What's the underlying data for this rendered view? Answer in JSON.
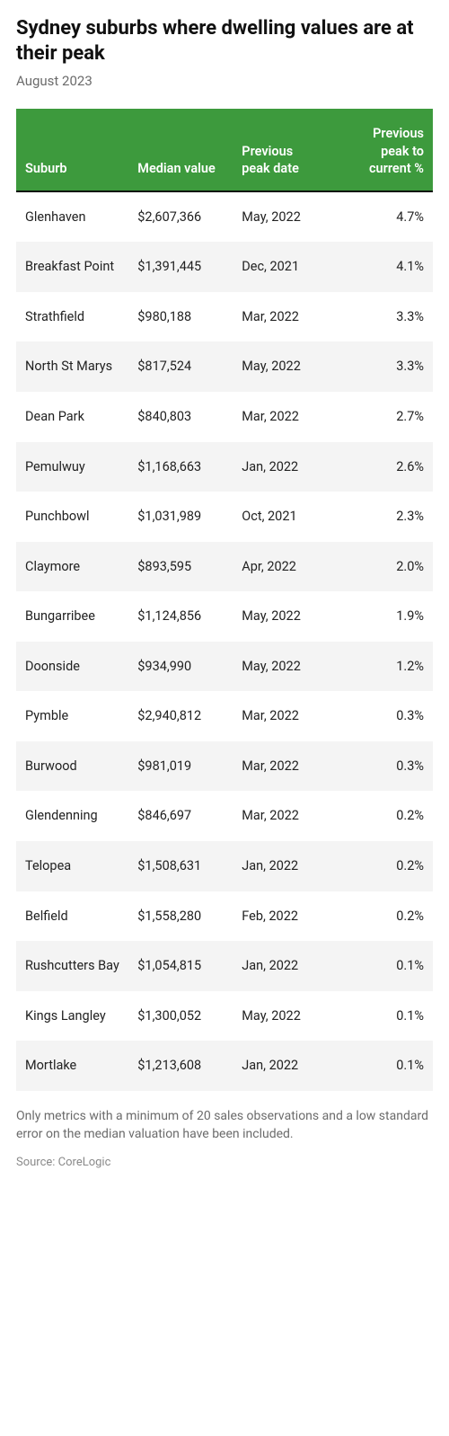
{
  "title": "Sydney suburbs where dwelling values are at their peak",
  "subtitle": "August 2023",
  "table": {
    "columns": {
      "suburb": "Suburb",
      "value": "Median value",
      "date": "Previous peak date",
      "pct": "Previous peak to current %"
    },
    "header_bg": "#3d9a3d",
    "header_fg": "#ffffff",
    "row_alt_bg": "#f4f4f4",
    "rows": [
      {
        "suburb": "Glenhaven",
        "value": "$2,607,366",
        "date": "May, 2022",
        "pct": "4.7%"
      },
      {
        "suburb": "Breakfast Point",
        "value": "$1,391,445",
        "date": "Dec, 2021",
        "pct": "4.1%"
      },
      {
        "suburb": "Strathfield",
        "value": "$980,188",
        "date": "Mar, 2022",
        "pct": "3.3%"
      },
      {
        "suburb": "North St Marys",
        "value": "$817,524",
        "date": "May, 2022",
        "pct": "3.3%"
      },
      {
        "suburb": "Dean Park",
        "value": "$840,803",
        "date": "Mar, 2022",
        "pct": "2.7%"
      },
      {
        "suburb": "Pemulwuy",
        "value": "$1,168,663",
        "date": "Jan, 2022",
        "pct": "2.6%"
      },
      {
        "suburb": "Punchbowl",
        "value": "$1,031,989",
        "date": "Oct, 2021",
        "pct": "2.3%"
      },
      {
        "suburb": "Claymore",
        "value": "$893,595",
        "date": "Apr, 2022",
        "pct": "2.0%"
      },
      {
        "suburb": "Bungarribee",
        "value": "$1,124,856",
        "date": "May, 2022",
        "pct": "1.9%"
      },
      {
        "suburb": "Doonside",
        "value": "$934,990",
        "date": "May, 2022",
        "pct": "1.2%"
      },
      {
        "suburb": "Pymble",
        "value": "$2,940,812",
        "date": "Mar, 2022",
        "pct": "0.3%"
      },
      {
        "suburb": "Burwood",
        "value": "$981,019",
        "date": "Mar, 2022",
        "pct": "0.3%"
      },
      {
        "suburb": "Glendenning",
        "value": "$846,697",
        "date": "Mar, 2022",
        "pct": "0.2%"
      },
      {
        "suburb": "Telopea",
        "value": "$1,508,631",
        "date": "Jan, 2022",
        "pct": "0.2%"
      },
      {
        "suburb": "Belfield",
        "value": "$1,558,280",
        "date": "Feb, 2022",
        "pct": "0.2%"
      },
      {
        "suburb": "Rushcutters Bay",
        "value": "$1,054,815",
        "date": "Jan, 2022",
        "pct": "0.1%"
      },
      {
        "suburb": "Kings Langley",
        "value": "$1,300,052",
        "date": "May, 2022",
        "pct": "0.1%"
      },
      {
        "suburb": "Mortlake",
        "value": "$1,213,608",
        "date": "Jan, 2022",
        "pct": "0.1%"
      }
    ]
  },
  "footnote": "Only metrics with a minimum of 20 sales observations and a low standard error on the median valuation have been included.",
  "source": "Source: CoreLogic"
}
